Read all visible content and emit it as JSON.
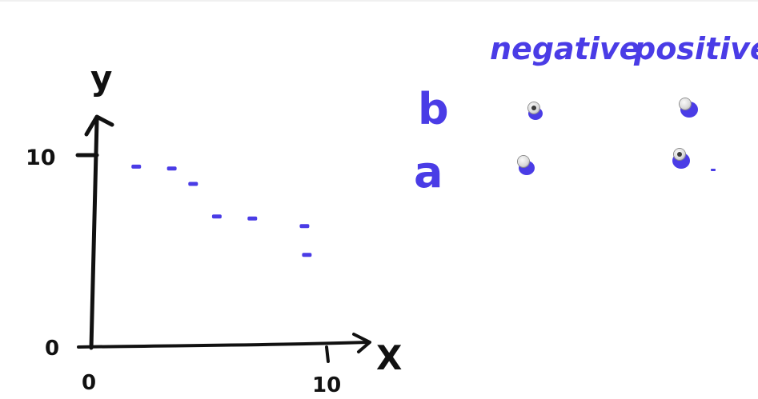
{
  "axes": {
    "y_label": "y",
    "x_label": "X",
    "y_tick_top": "10",
    "y_tick_zero": "0",
    "x_tick_zero": "0",
    "x_tick_end": "10"
  },
  "chart_data": {
    "type": "scatter",
    "title": "",
    "xlabel": "X",
    "ylabel": "y",
    "xlim": [
      0,
      10
    ],
    "ylim": [
      0,
      10
    ],
    "points": [
      {
        "x": 1.9,
        "y": 9.4
      },
      {
        "x": 3.4,
        "y": 9.3
      },
      {
        "x": 4.3,
        "y": 8.5
      },
      {
        "x": 5.3,
        "y": 6.8
      },
      {
        "x": 6.8,
        "y": 6.7
      },
      {
        "x": 9.0,
        "y": 6.3
      },
      {
        "x": 9.1,
        "y": 4.8
      }
    ],
    "color": "#4a3ce6",
    "axis_color": "#111111"
  },
  "options": {
    "columns": [
      "negative",
      "positive"
    ],
    "rows": [
      {
        "label": "b",
        "negative_selected": true,
        "positive_selected": false
      },
      {
        "label": "a",
        "negative_selected": false,
        "positive_selected": true
      }
    ]
  },
  "colors": {
    "ink_blue": "#4a3ce6",
    "ink_black": "#111111"
  }
}
